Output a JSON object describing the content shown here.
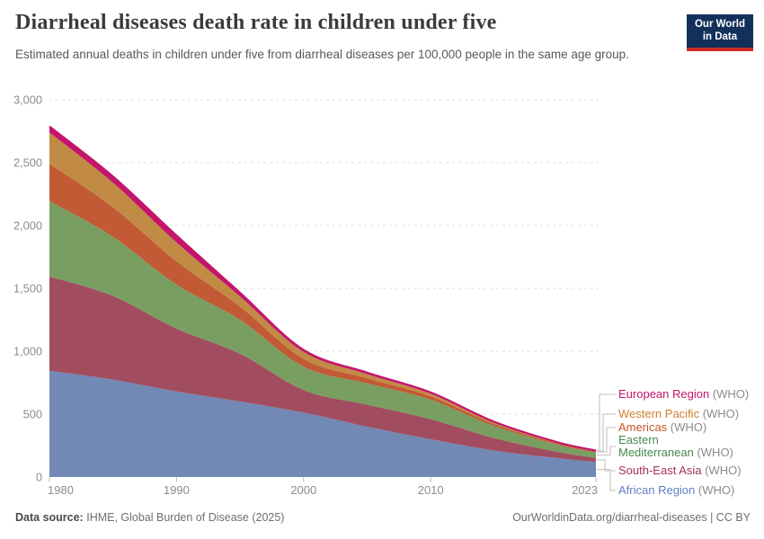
{
  "header": {
    "title": "Diarrheal diseases death rate in children under five",
    "subtitle": "Estimated annual deaths in children under five from diarrheal diseases per 100,000 people in the same age group.",
    "logo": {
      "line1": "Our World",
      "line2": "in Data",
      "bg_color": "#12305a",
      "accent_color": "#d22d26"
    }
  },
  "chart_data": {
    "type": "area",
    "stacked": true,
    "title": "Diarrheal diseases death rate in children under five",
    "unit": "deaths per 100,000 children under five",
    "x": [
      1980,
      1985,
      1990,
      1995,
      2000,
      2005,
      2010,
      2015,
      2020,
      2023
    ],
    "xlim": [
      1980,
      2023
    ],
    "ylim": [
      0,
      3000
    ],
    "yticks": [
      0,
      500,
      1000,
      1500,
      2000,
      2500,
      3000
    ],
    "ytick_labels": [
      "0",
      "500",
      "1,000",
      "1,500",
      "2,000",
      "2,500",
      "3,000"
    ],
    "xticks": [
      1980,
      1990,
      2000,
      2010,
      2023
    ],
    "xtick_labels": [
      "1980",
      "1990",
      "2000",
      "2010",
      "2023"
    ],
    "grid": "dashed-horizontal",
    "legend_position": "right",
    "legend_suffix": "(WHO)",
    "series": [
      {
        "name": "African Region (WHO)",
        "legend_lines": [
          "African Region"
        ],
        "fill": "#7288b5",
        "text_color": "#5d80bf",
        "values": [
          845,
          775,
          680,
          600,
          512,
          400,
          300,
          210,
          150,
          120
        ]
      },
      {
        "name": "South-East Asia (WHO)",
        "legend_lines": [
          "South-East Asia"
        ],
        "fill": "#a24d5f",
        "text_color": "#a23552",
        "values": [
          750,
          665,
          500,
          380,
          180,
          175,
          160,
          100,
          50,
          33
        ]
      },
      {
        "name": "Eastern Mediterranean (WHO)",
        "legend_lines": [
          "Eastern",
          "Mediterranean"
        ],
        "fill": "#799e61",
        "text_color": "#468b4d",
        "values": [
          600,
          470,
          350,
          270,
          185,
          170,
          155,
          95,
          55,
          42
        ]
      },
      {
        "name": "Americas (WHO)",
        "legend_lines": [
          "Americas"
        ],
        "fill": "#c25a35",
        "text_color": "#c65427",
        "values": [
          295,
          235,
          185,
          105,
          62,
          40,
          27,
          16,
          10,
          8
        ]
      },
      {
        "name": "Western Pacific (WHO)",
        "legend_lines": [
          "Western Pacific"
        ],
        "fill": "#c18b45",
        "text_color": "#cd7f2e",
        "values": [
          250,
          195,
          150,
          80,
          55,
          33,
          20,
          12,
          7,
          5
        ]
      },
      {
        "name": "European Region (WHO)",
        "legend_lines": [
          "European Region"
        ],
        "fill": "#c4156d",
        "text_color": "#c2146c",
        "top_line": true,
        "values": [
          48,
          50,
          55,
          30,
          16,
          12,
          10,
          6,
          4,
          3
        ]
      }
    ]
  },
  "footer": {
    "source_label": "Data source:",
    "source_value": "IHME, Global Burden of Disease (2025)",
    "credit": "OurWorldinData.org/diarrheal-diseases | CC BY"
  }
}
